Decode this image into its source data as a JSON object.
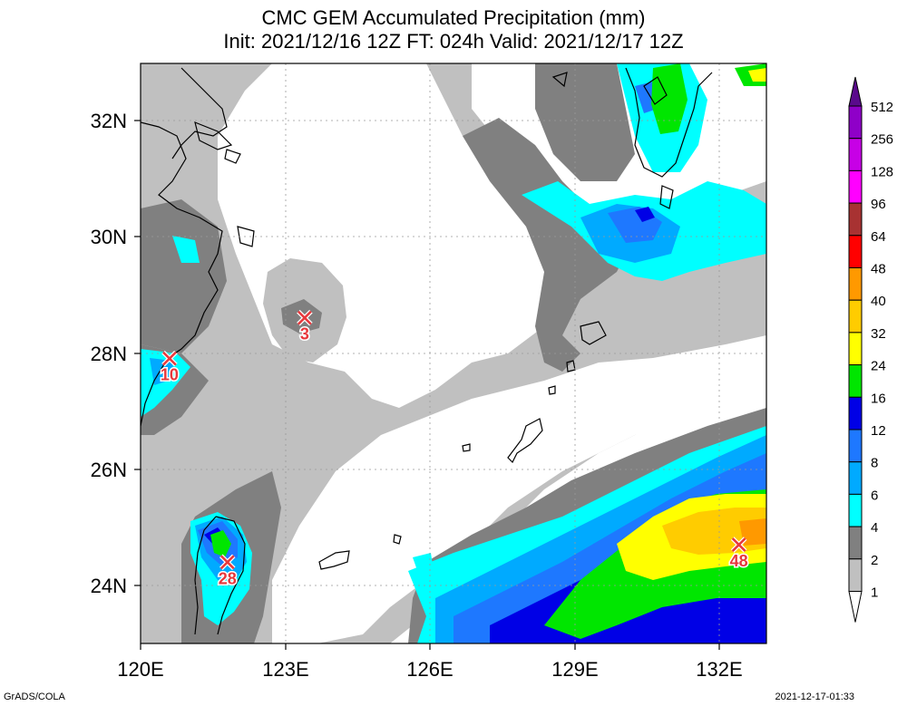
{
  "title": {
    "line1": "CMC GEM Accumulated Precipitation (mm)",
    "line2": "Init: 2021/12/16 12Z  FT: 024h  Valid: 2021/12/17 12Z"
  },
  "axes": {
    "lon_labels": [
      "120E",
      "123E",
      "126E",
      "129E",
      "132E"
    ],
    "lat_labels": [
      "32N",
      "30N",
      "28N",
      "26N",
      "24N"
    ]
  },
  "colorbar": {
    "levels": [
      "512",
      "256",
      "128",
      "96",
      "64",
      "48",
      "40",
      "32",
      "24",
      "16",
      "12",
      "8",
      "6",
      "4",
      "2",
      "1"
    ],
    "colors": [
      "#5a0a8c",
      "#8f00c8",
      "#c700e6",
      "#ff00ff",
      "#a83232",
      "#ff0000",
      "#ff9900",
      "#ffcc00",
      "#ffff00",
      "#00e600",
      "#0000e6",
      "#1e78ff",
      "#00aaff",
      "#00ffff",
      "#808080",
      "#c0c0c0"
    ],
    "extends": "both"
  },
  "markers": [
    {
      "label": "10",
      "lon": 120.6,
      "lat": 27.9
    },
    {
      "label": "3",
      "lon": 123.4,
      "lat": 28.6
    },
    {
      "label": "28",
      "lon": 121.8,
      "lat": 24.4
    },
    {
      "label": "48",
      "lon": 132.4,
      "lat": 24.7
    }
  ],
  "footer": {
    "left": "GrADS/COLA",
    "right": "2021-12-17-01:33"
  }
}
